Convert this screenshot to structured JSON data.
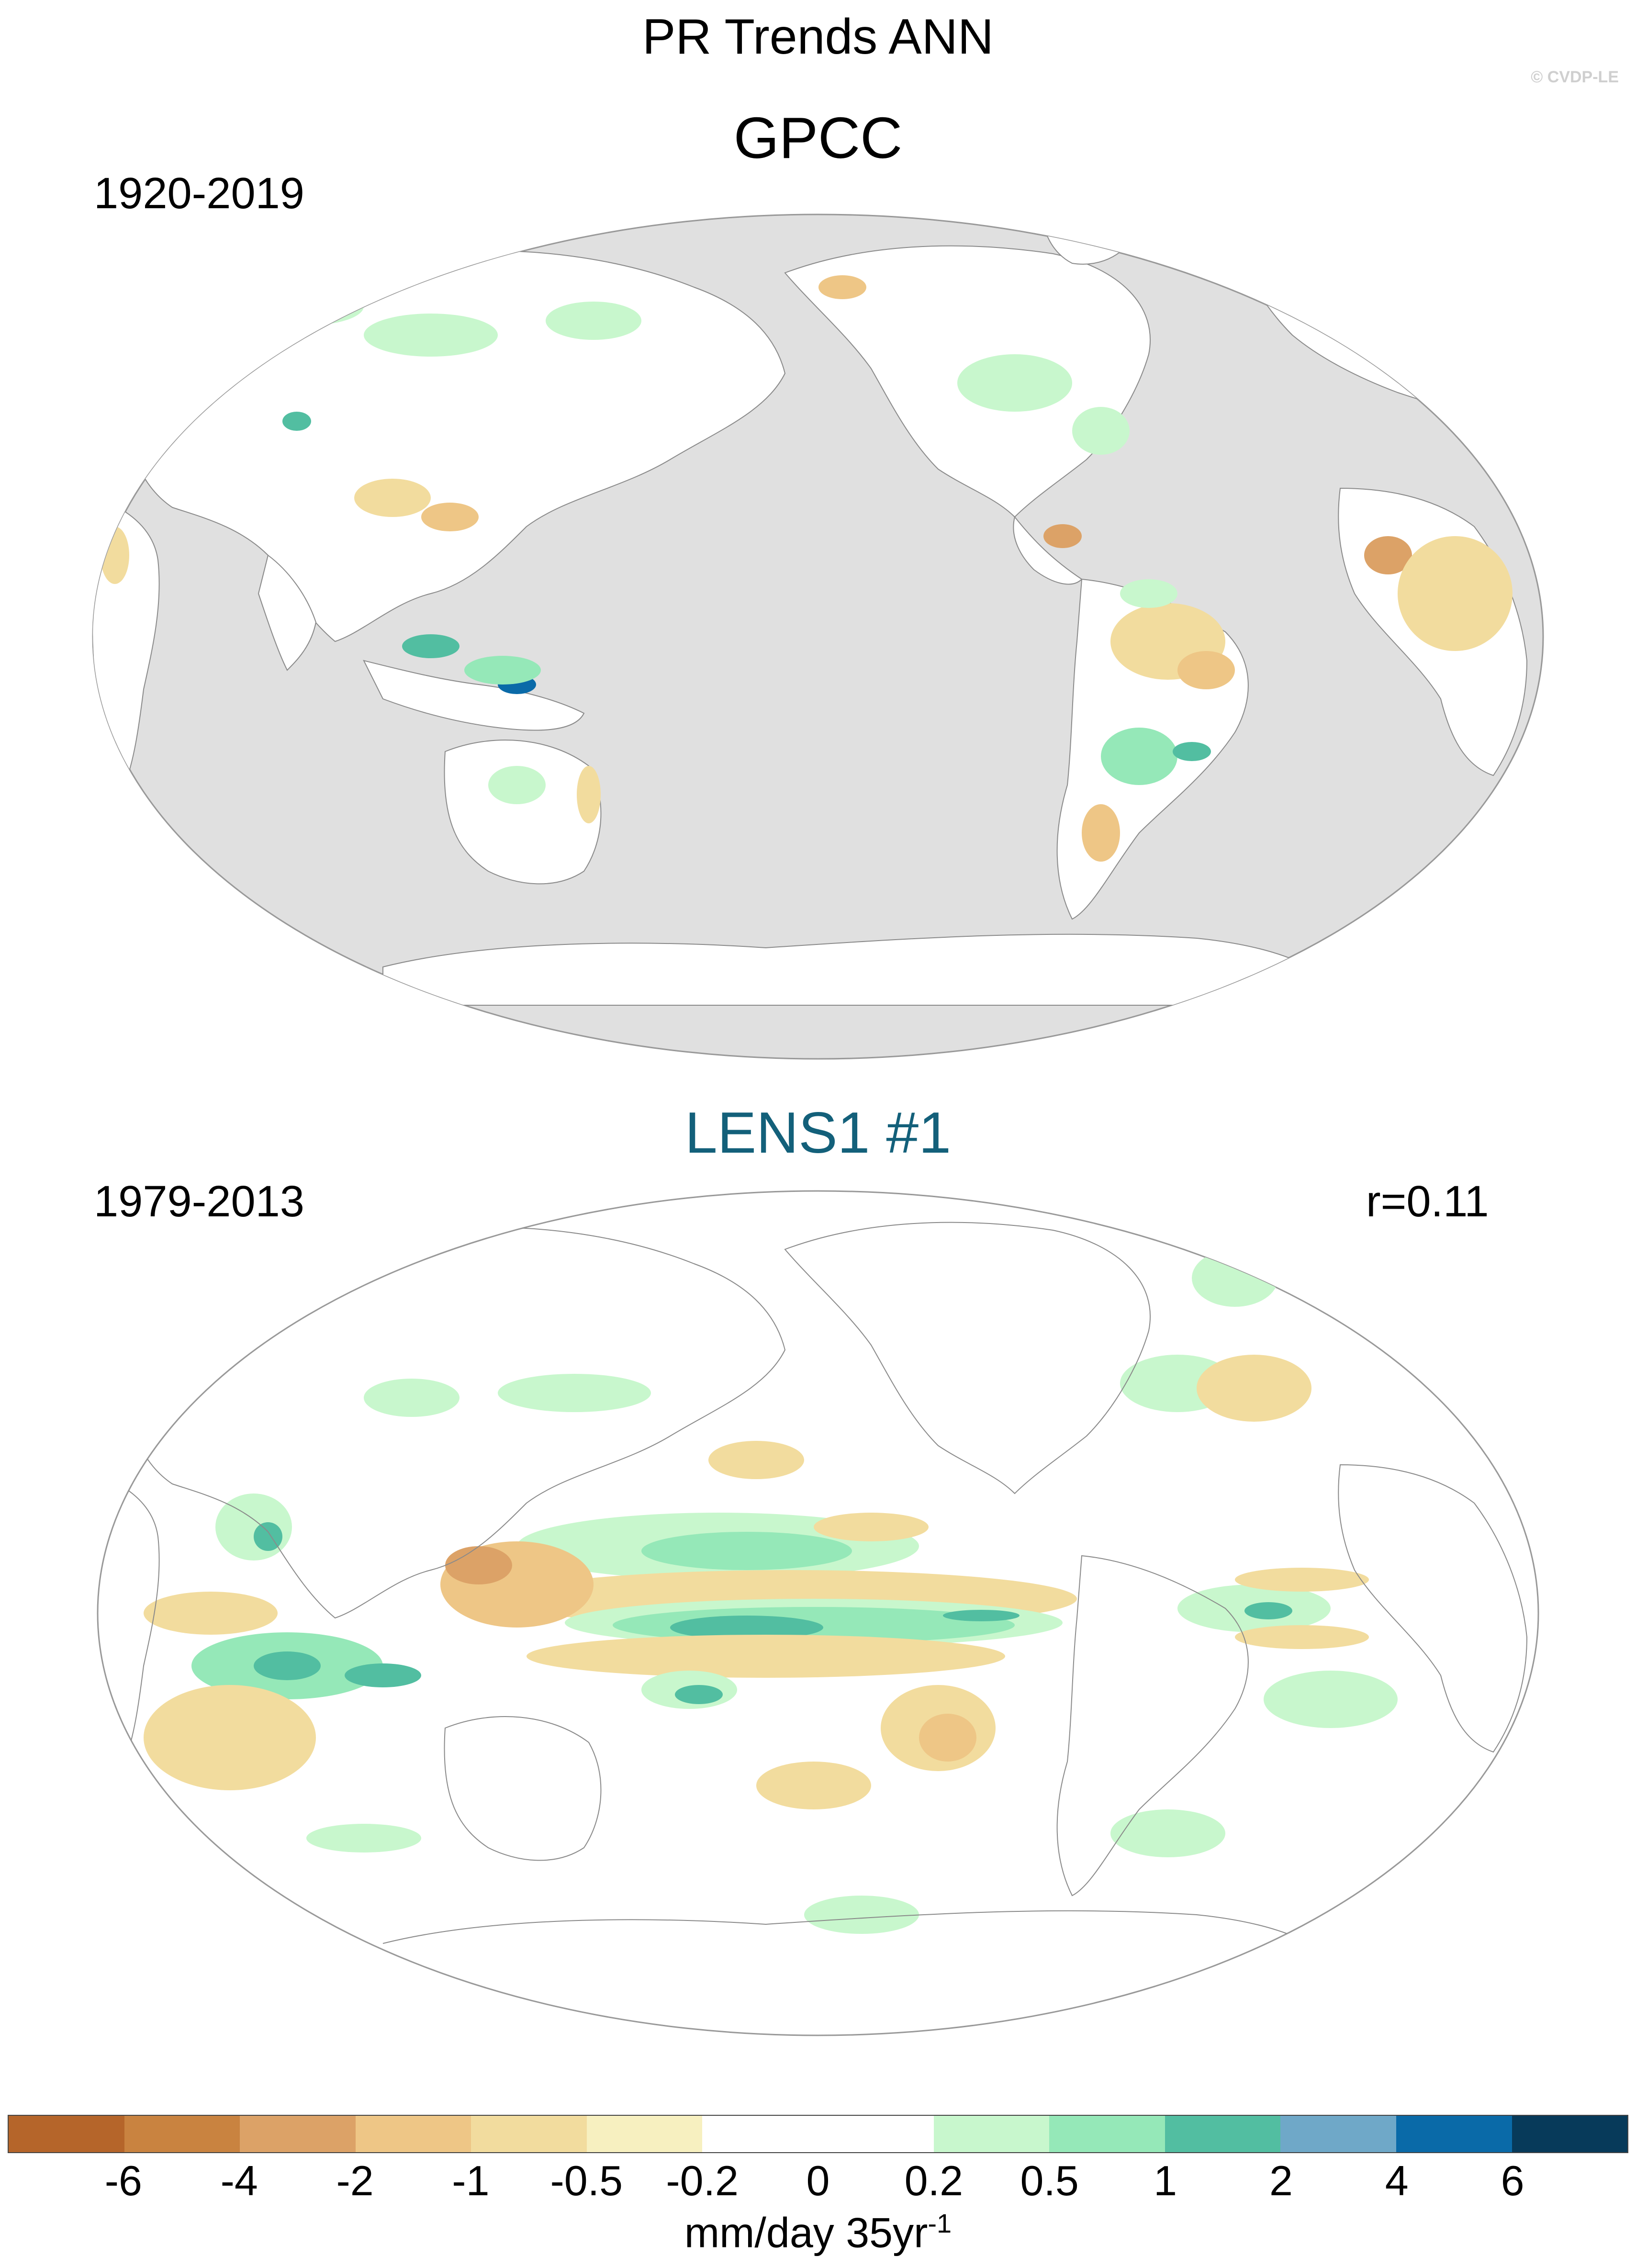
{
  "figure": {
    "title": "PR Trends ANN",
    "copyright": "© CVDP-LE"
  },
  "panels": [
    {
      "dataset": "GPCC",
      "period": "1920-2019",
      "correlation": "",
      "title_color": "#000000",
      "ocean_masked": true
    },
    {
      "dataset": "LENS1 #1",
      "period": "1979-2013",
      "correlation": "r=0.11",
      "title_color": "#13607a",
      "ocean_masked": false
    }
  ],
  "colorbar": {
    "colors": [
      "#b5652a",
      "#c98340",
      "#dca267",
      "#eec686",
      "#f2dc9e",
      "#f7f0c0",
      "#ffffff",
      "#ffffff",
      "#c8f7cd",
      "#95e8b8",
      "#52bea1",
      "#6fa8c8",
      "#0a6aa8",
      "#073a5a"
    ],
    "labels": [
      "-6",
      "-4",
      "-2",
      "-1",
      "-0.5",
      "-0.2",
      "0",
      "0.2",
      "0.5",
      "1",
      "2",
      "4",
      "6"
    ],
    "units": "mm/day 35yr",
    "units_exponent": "-1"
  },
  "map_style": {
    "land_mask_color": "#e0e0e0",
    "coastline_color": "#8a8a8a",
    "projection": "Robinson, Pacific-centered"
  }
}
